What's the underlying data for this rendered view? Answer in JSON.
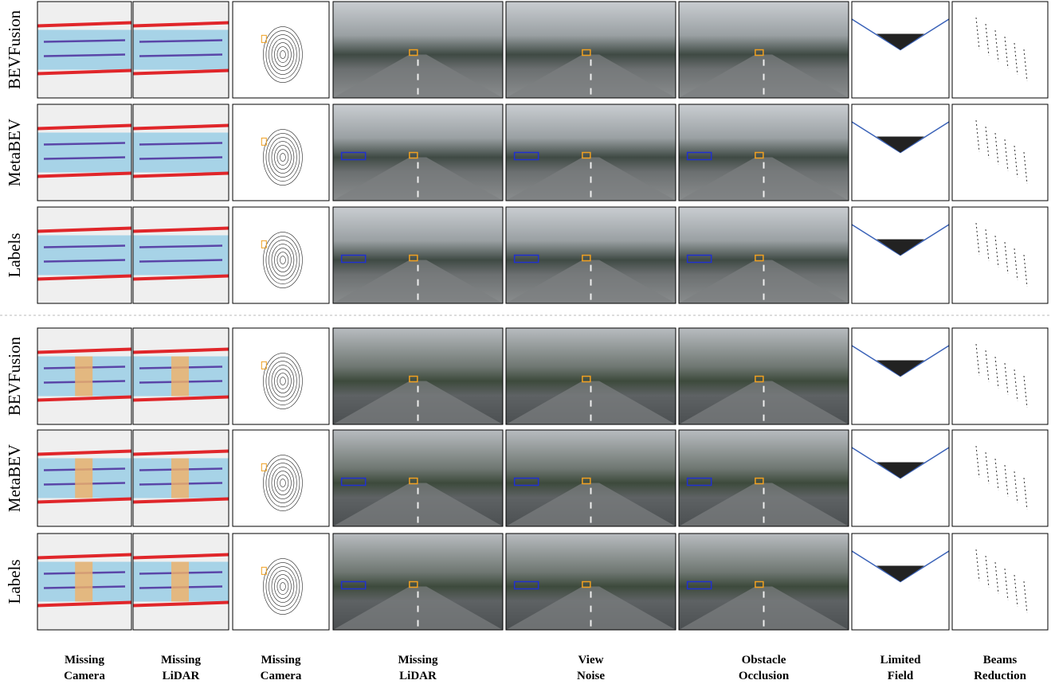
{
  "row_groups": [
    {
      "rows": [
        "BEVFusion",
        "MetaBEV",
        "Labels"
      ]
    },
    {
      "rows": [
        "BEVFusion",
        "MetaBEV",
        "Labels"
      ]
    }
  ],
  "columns": [
    {
      "line1": "Missing",
      "line2": "Camera"
    },
    {
      "line1": "Missing",
      "line2": "LiDAR"
    },
    {
      "line1": "Missing",
      "line2": "Camera"
    },
    {
      "line1": "Missing",
      "line2": "LiDAR"
    },
    {
      "line1": "View",
      "line2": "Noise"
    },
    {
      "line1": "Obstacle",
      "line2": "Occlusion"
    },
    {
      "line1": "Limited",
      "line2": "Field"
    },
    {
      "line1": "Beams",
      "line2": "Reduction"
    }
  ]
}
